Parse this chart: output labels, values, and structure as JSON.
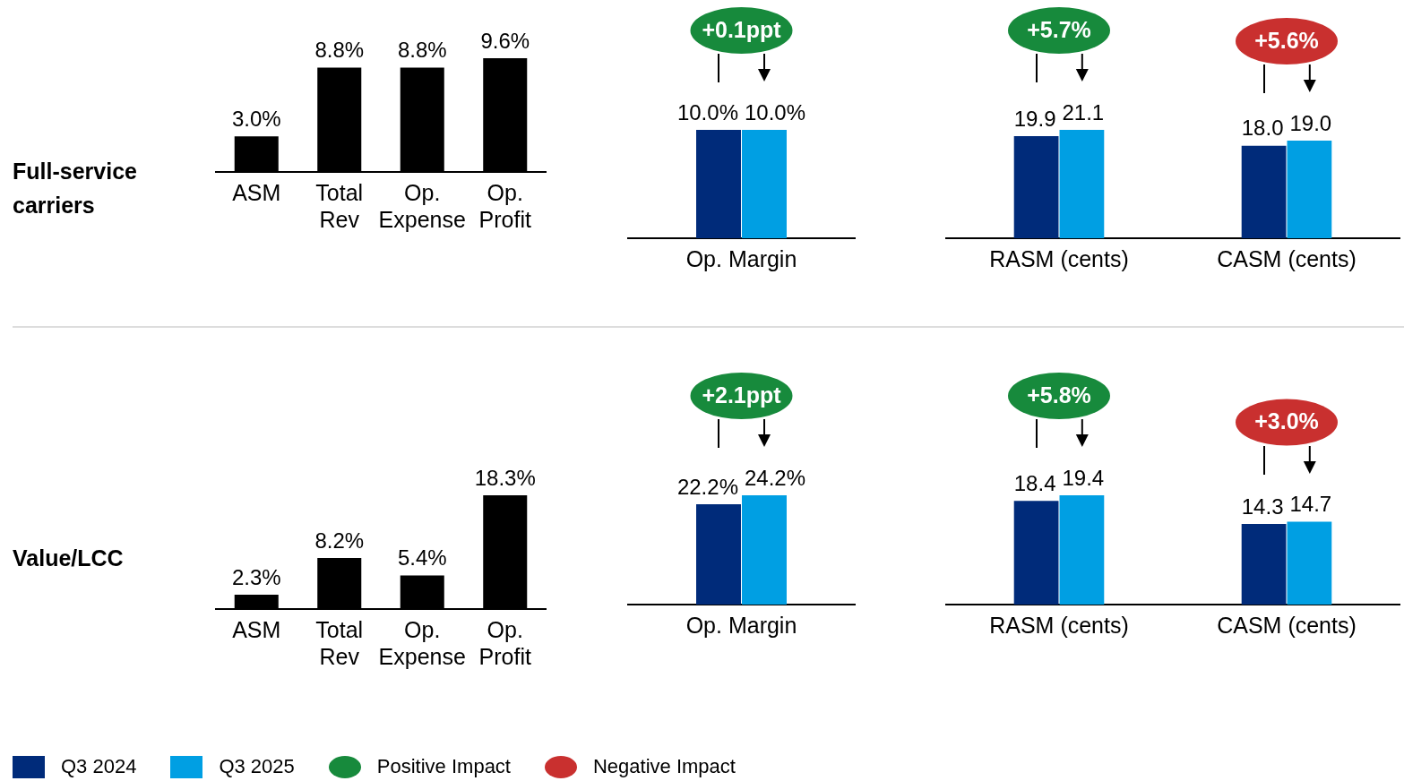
{
  "chart_data": [
    {
      "type": "bar",
      "title": "Full-service carriers",
      "categories": [
        "ASM",
        "Total Rev",
        "Op. Expense",
        "Op. Profit"
      ],
      "values": [
        3.0,
        8.8,
        8.8,
        9.6
      ],
      "value_labels": [
        "3.0%",
        "8.8%",
        "8.8%",
        "9.6%"
      ],
      "color": "#000000"
    },
    {
      "type": "bar",
      "categories": [
        "Op. Margin"
      ],
      "series": [
        {
          "name": "Q3 2024",
          "color": "#002b7a",
          "values": [
            10.0
          ],
          "value_labels": [
            "10.0%"
          ]
        },
        {
          "name": "Q3 2025",
          "color": "#009fe3",
          "values": [
            10.0
          ],
          "value_labels": [
            "10.0%"
          ]
        }
      ],
      "legend": "bottom",
      "annotations": [
        "+0.1ppt"
      ]
    },
    {
      "type": "bar",
      "categories": [
        "RASM (cents)",
        "CASM (cents)"
      ],
      "series": [
        {
          "name": "Q3 2024",
          "color": "#002b7a",
          "values": [
            19.9,
            18.0
          ],
          "value_labels": [
            "19.9",
            "18.0"
          ]
        },
        {
          "name": "Q3 2025",
          "color": "#009fe3",
          "values": [
            21.1,
            19.0
          ],
          "value_labels": [
            "21.1",
            "19.0"
          ]
        }
      ],
      "legend": "bottom",
      "annotations": [
        "+5.7%",
        "+5.6%"
      ]
    },
    {
      "type": "bar",
      "title": "Value/LCC",
      "categories": [
        "ASM",
        "Total Rev",
        "Op. Expense",
        "Op. Profit"
      ],
      "values": [
        2.3,
        8.2,
        5.4,
        18.3
      ],
      "value_labels": [
        "2.3%",
        "8.2%",
        "5.4%",
        "18.3%"
      ],
      "color": "#000000"
    },
    {
      "type": "bar",
      "categories": [
        "Op. Margin"
      ],
      "series": [
        {
          "name": "Q3 2024",
          "color": "#002b7a",
          "values": [
            22.2
          ],
          "value_labels": [
            "22.2%"
          ]
        },
        {
          "name": "Q3 2025",
          "color": "#009fe3",
          "values": [
            24.2
          ],
          "value_labels": [
            "24.2%"
          ]
        }
      ],
      "legend": "bottom",
      "annotations": [
        "+2.1ppt"
      ]
    },
    {
      "type": "bar",
      "categories": [
        "RASM (cents)",
        "CASM (cents)"
      ],
      "legend": "bottom",
      "series": [
        {
          "name": "Q3 2024",
          "color": "#002b7a",
          "values": [
            18.4,
            14.3
          ],
          "value_labels": [
            "18.4",
            "14.3"
          ]
        },
        {
          "name": "Q3 2025",
          "color": "#009fe3",
          "values": [
            19.4,
            14.7
          ],
          "value_labels": [
            "19.4",
            "14.7"
          ]
        }
      ],
      "annotations": [
        "+5.8%",
        "+3.0%"
      ]
    },
    {
      "type": "other",
      "categories": [
        "Positive Impact",
        "Negative Impact"
      ],
      "colors": [
        "#178a3c",
        "#c9302f"
      ]
    }
  ]
}
